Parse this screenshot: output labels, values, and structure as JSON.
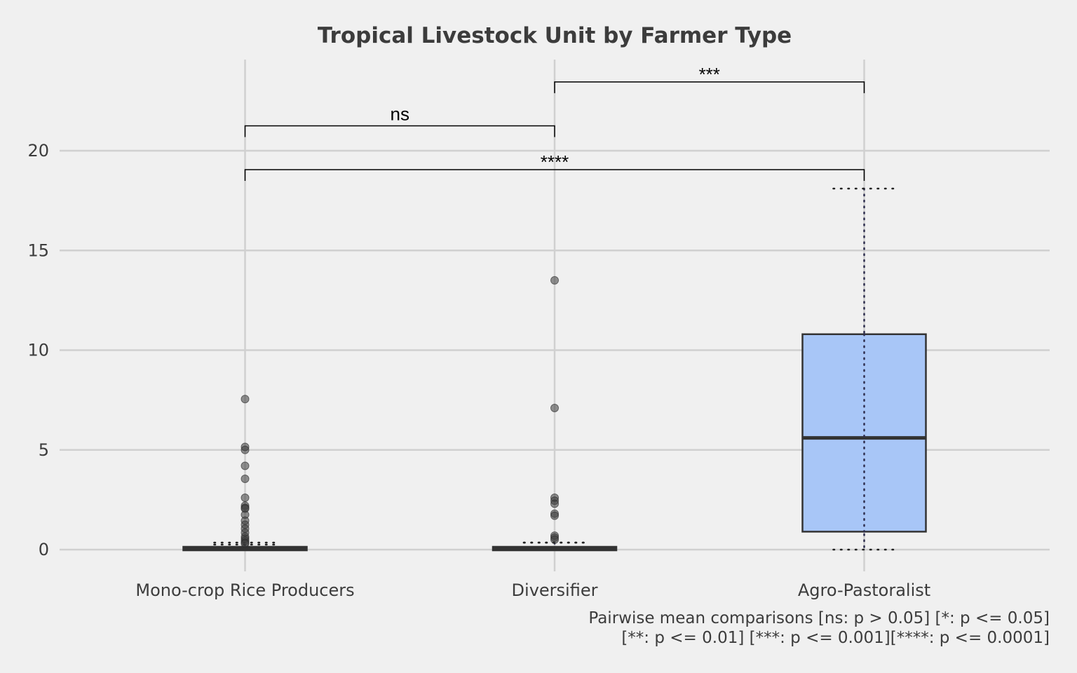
{
  "chart_data": {
    "type": "box",
    "title": "Tropical Livestock Unit by Farmer Type",
    "xlabel": "",
    "ylabel": "",
    "ylim": [
      -1.1,
      24.5
    ],
    "yticks": [
      0,
      5,
      10,
      15,
      20
    ],
    "grid": true,
    "categories": [
      "Mono-crop Rice Producers",
      "Diversifier",
      "Agro-Pastoralist"
    ],
    "box_color": "#a8c6f7",
    "series": [
      {
        "category": "Mono-crop Rice Producers",
        "q1": 0.0,
        "median": 0.05,
        "q3": 0.1,
        "whisker_low": 0.0,
        "whisker_high": 0.25,
        "outliers": [
          7.55,
          5.15,
          5.0,
          4.2,
          3.55,
          2.6,
          2.2,
          2.1,
          2.05,
          1.75,
          1.45,
          1.25,
          1.05,
          0.85,
          0.65,
          0.55,
          0.45,
          0.35,
          0.3
        ]
      },
      {
        "category": "Diversifier",
        "q1": 0.0,
        "median": 0.1,
        "q3": 0.15,
        "whisker_low": 0.0,
        "whisker_high": 0.35,
        "outliers": [
          13.5,
          7.1,
          2.6,
          2.45,
          2.3,
          1.8,
          1.7,
          0.7,
          0.6,
          0.5
        ]
      },
      {
        "category": "Agro-Pastoralist",
        "q1": 0.9,
        "median": 5.6,
        "q3": 10.8,
        "whisker_low": 0.0,
        "whisker_high": 18.1,
        "outliers": []
      }
    ],
    "annotations": [
      {
        "from": 0,
        "to": 2,
        "y": 19.05,
        "label": "****"
      },
      {
        "from": 0,
        "to": 1,
        "y": 21.25,
        "label": "ns"
      },
      {
        "from": 1,
        "to": 2,
        "y": 23.45,
        "label": "***"
      }
    ],
    "caption_lines": [
      "Pairwise mean comparisons [ns: p > 0.05] [*: p <= 0.05]",
      "[**: p <= 0.01] [***: p <= 0.001][****: p <= 0.0001]"
    ]
  }
}
